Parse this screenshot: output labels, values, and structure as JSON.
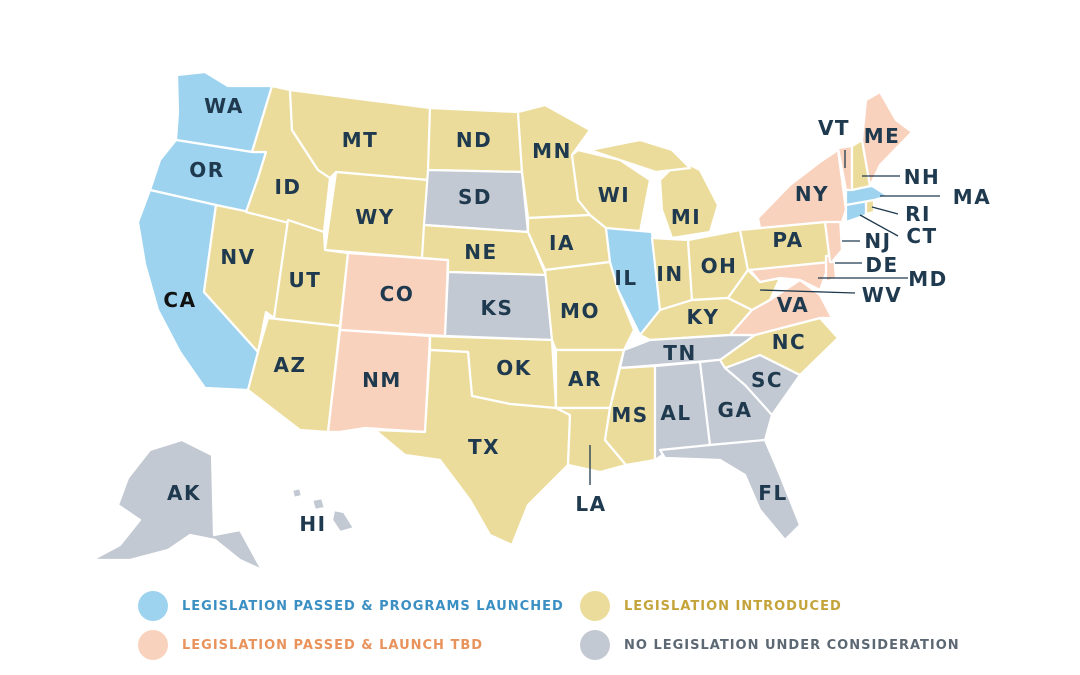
{
  "colors": {
    "passed_launched": "#9dd3ef",
    "passed_tbd": "#f9d2bd",
    "introduced": "#ecdc9b",
    "none": "#c3c9d2",
    "label": "#1f3a4f",
    "legend_passed_launched_text": "#3b8fc3",
    "legend_passed_tbd_text": "#e8925c",
    "legend_introduced_text": "#c4a43a",
    "legend_none_text": "#5c6873"
  },
  "legend": [
    {
      "key": "passed_launched",
      "label": "LEGISLATION PASSED & PROGRAMS LAUNCHED"
    },
    {
      "key": "introduced",
      "label": "LEGISLATION INTRODUCED"
    },
    {
      "key": "passed_tbd",
      "label": "LEGISLATION PASSED & LAUNCH TBD"
    },
    {
      "key": "none",
      "label": "NO LEGISLATION UNDER CONSIDERATION"
    }
  ],
  "states": [
    {
      "abbr": "WA",
      "status": "passed_launched"
    },
    {
      "abbr": "OR",
      "status": "passed_launched"
    },
    {
      "abbr": "CA",
      "status": "passed_launched"
    },
    {
      "abbr": "IL",
      "status": "passed_launched"
    },
    {
      "abbr": "MA",
      "status": "passed_launched"
    },
    {
      "abbr": "CT",
      "status": "passed_launched"
    },
    {
      "abbr": "CO",
      "status": "passed_tbd"
    },
    {
      "abbr": "NM",
      "status": "passed_tbd"
    },
    {
      "abbr": "NY",
      "status": "passed_tbd"
    },
    {
      "abbr": "VT",
      "status": "passed_tbd"
    },
    {
      "abbr": "ME",
      "status": "passed_tbd"
    },
    {
      "abbr": "NJ",
      "status": "passed_tbd"
    },
    {
      "abbr": "MD",
      "status": "passed_tbd"
    },
    {
      "abbr": "VA",
      "status": "passed_tbd"
    },
    {
      "abbr": "DE",
      "status": "passed_tbd"
    },
    {
      "abbr": "SD",
      "status": "none"
    },
    {
      "abbr": "KS",
      "status": "none"
    },
    {
      "abbr": "TN",
      "status": "none"
    },
    {
      "abbr": "AL",
      "status": "none"
    },
    {
      "abbr": "GA",
      "status": "none"
    },
    {
      "abbr": "SC",
      "status": "none"
    },
    {
      "abbr": "FL",
      "status": "none"
    },
    {
      "abbr": "AK",
      "status": "none"
    },
    {
      "abbr": "HI",
      "status": "none"
    },
    {
      "abbr": "MT",
      "status": "introduced"
    },
    {
      "abbr": "ID",
      "status": "introduced"
    },
    {
      "abbr": "NV",
      "status": "introduced"
    },
    {
      "abbr": "UT",
      "status": "introduced"
    },
    {
      "abbr": "AZ",
      "status": "introduced"
    },
    {
      "abbr": "WY",
      "status": "introduced"
    },
    {
      "abbr": "ND",
      "status": "introduced"
    },
    {
      "abbr": "NE",
      "status": "introduced"
    },
    {
      "abbr": "OK",
      "status": "introduced"
    },
    {
      "abbr": "TX",
      "status": "introduced"
    },
    {
      "abbr": "MN",
      "status": "introduced"
    },
    {
      "abbr": "IA",
      "status": "introduced"
    },
    {
      "abbr": "MO",
      "status": "introduced"
    },
    {
      "abbr": "AR",
      "status": "introduced"
    },
    {
      "abbr": "LA",
      "status": "introduced"
    },
    {
      "abbr": "WI",
      "status": "introduced"
    },
    {
      "abbr": "MI",
      "status": "introduced"
    },
    {
      "abbr": "IN",
      "status": "introduced"
    },
    {
      "abbr": "OH",
      "status": "introduced"
    },
    {
      "abbr": "KY",
      "status": "introduced"
    },
    {
      "abbr": "MS",
      "status": "introduced"
    },
    {
      "abbr": "PA",
      "status": "introduced"
    },
    {
      "abbr": "WV",
      "status": "introduced"
    },
    {
      "abbr": "NC",
      "status": "introduced"
    },
    {
      "abbr": "NH",
      "status": "introduced"
    },
    {
      "abbr": "RI",
      "status": "introduced"
    }
  ]
}
